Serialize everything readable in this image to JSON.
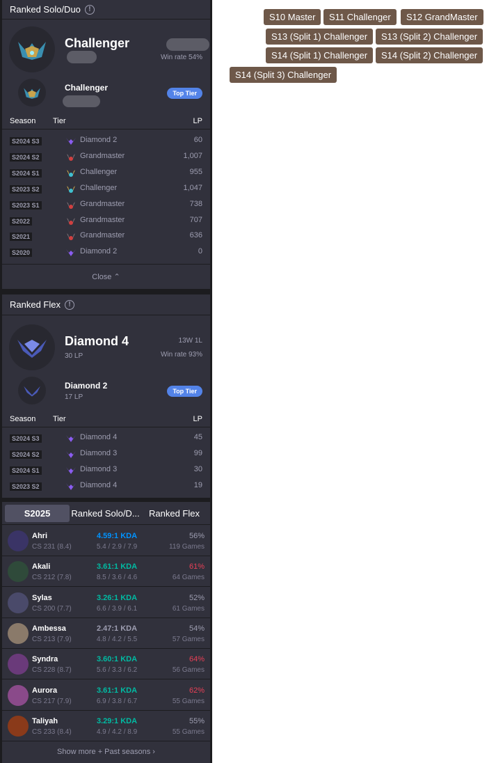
{
  "solo": {
    "title": "Ranked Solo/Duo",
    "current_tier": "Challenger",
    "win_rate": "Win rate 54%",
    "peak_tier": "Challenger",
    "badge": "Top Tier",
    "headers": {
      "season": "Season",
      "tier": "Tier",
      "lp": "LP"
    },
    "rows": [
      {
        "season": "S2024 S3",
        "tier": "Diamond 2",
        "icon": "diamond",
        "lp": "60"
      },
      {
        "season": "S2024 S2",
        "tier": "Grandmaster",
        "icon": "grandmaster",
        "lp": "1,007"
      },
      {
        "season": "S2024 S1",
        "tier": "Challenger",
        "icon": "challenger",
        "lp": "955"
      },
      {
        "season": "S2023 S2",
        "tier": "Challenger",
        "icon": "challenger",
        "lp": "1,047"
      },
      {
        "season": "S2023 S1",
        "tier": "Grandmaster",
        "icon": "grandmaster",
        "lp": "738"
      },
      {
        "season": "S2022",
        "tier": "Grandmaster",
        "icon": "grandmaster",
        "lp": "707"
      },
      {
        "season": "S2021",
        "tier": "Grandmaster",
        "icon": "grandmaster",
        "lp": "636"
      },
      {
        "season": "S2020",
        "tier": "Diamond 2",
        "icon": "diamond",
        "lp": "0"
      }
    ],
    "close": "Close"
  },
  "flex": {
    "title": "Ranked Flex",
    "current_tier": "Diamond 4",
    "current_lp": "30 LP",
    "record": "13W 1L",
    "win_rate": "Win rate 93%",
    "peak_tier": "Diamond 2",
    "peak_lp": "17 LP",
    "badge": "Top Tier",
    "headers": {
      "season": "Season",
      "tier": "Tier",
      "lp": "LP"
    },
    "rows": [
      {
        "season": "S2024 S3",
        "tier": "Diamond 4",
        "icon": "diamond",
        "lp": "45"
      },
      {
        "season": "S2024 S2",
        "tier": "Diamond 3",
        "icon": "diamond",
        "lp": "99"
      },
      {
        "season": "S2024 S1",
        "tier": "Diamond 3",
        "icon": "diamond",
        "lp": "30"
      },
      {
        "season": "S2023 S2",
        "tier": "Diamond 4",
        "icon": "diamond",
        "lp": "19"
      }
    ]
  },
  "champions": {
    "tabs": [
      "S2025",
      "Ranked Solo/D...",
      "Ranked Flex"
    ],
    "rows": [
      {
        "name": "Ahri",
        "cs": "CS 231 (8.4)",
        "kda": "4.59:1 KDA",
        "kda_color": "#0093ff",
        "kd": "5.4 / 2.9 / 7.9",
        "wr": "56%",
        "wr_color": "#9e9eb1",
        "games": "119 Games",
        "avatar_color": "#3a3466"
      },
      {
        "name": "Akali",
        "cs": "CS 212 (7.8)",
        "kda": "3.61:1 KDA",
        "kda_color": "#00bba3",
        "kd": "8.5 / 3.6 / 4.6",
        "wr": "61%",
        "wr_color": "#e84057",
        "games": "64 Games",
        "avatar_color": "#2f4a3a"
      },
      {
        "name": "Sylas",
        "cs": "CS 200 (7.7)",
        "kda": "3.26:1 KDA",
        "kda_color": "#00bba3",
        "kd": "6.6 / 3.9 / 6.1",
        "wr": "52%",
        "wr_color": "#9e9eb1",
        "games": "61 Games",
        "avatar_color": "#4a4a6a"
      },
      {
        "name": "Ambessa",
        "cs": "CS 213 (7.9)",
        "kda": "2.47:1 KDA",
        "kda_color": "#9e9eb1",
        "kd": "4.8 / 4.2 / 5.5",
        "wr": "54%",
        "wr_color": "#9e9eb1",
        "games": "57 Games",
        "avatar_color": "#8a7a6a"
      },
      {
        "name": "Syndra",
        "cs": "CS 228 (8.7)",
        "kda": "3.60:1 KDA",
        "kda_color": "#00bba3",
        "kd": "5.6 / 3.3 / 6.2",
        "wr": "64%",
        "wr_color": "#e84057",
        "games": "56 Games",
        "avatar_color": "#6a3a7a"
      },
      {
        "name": "Aurora",
        "cs": "CS 217 (7.9)",
        "kda": "3.61:1 KDA",
        "kda_color": "#00bba3",
        "kd": "6.9 / 3.8 / 6.7",
        "wr": "62%",
        "wr_color": "#e84057",
        "games": "55 Games",
        "avatar_color": "#8a4a8a"
      },
      {
        "name": "Taliyah",
        "cs": "CS 233 (8.4)",
        "kda": "3.29:1 KDA",
        "kda_color": "#00bba3",
        "kd": "4.9 / 4.2 / 8.9",
        "wr": "55%",
        "wr_color": "#9e9eb1",
        "games": "55 Games",
        "avatar_color": "#8a3a1a"
      }
    ],
    "show_more": "Show more + Past seasons"
  },
  "past_ranks": [
    "S10 Master",
    "S11 Challenger",
    "S12 GrandMaster",
    "S13 (Split 1) Challenger",
    "S13 (Split 2) Challenger",
    "S14 (Split 1) Challenger",
    "S14 (Split 2) Challenger",
    "S14 (Split 3) Challenger"
  ]
}
